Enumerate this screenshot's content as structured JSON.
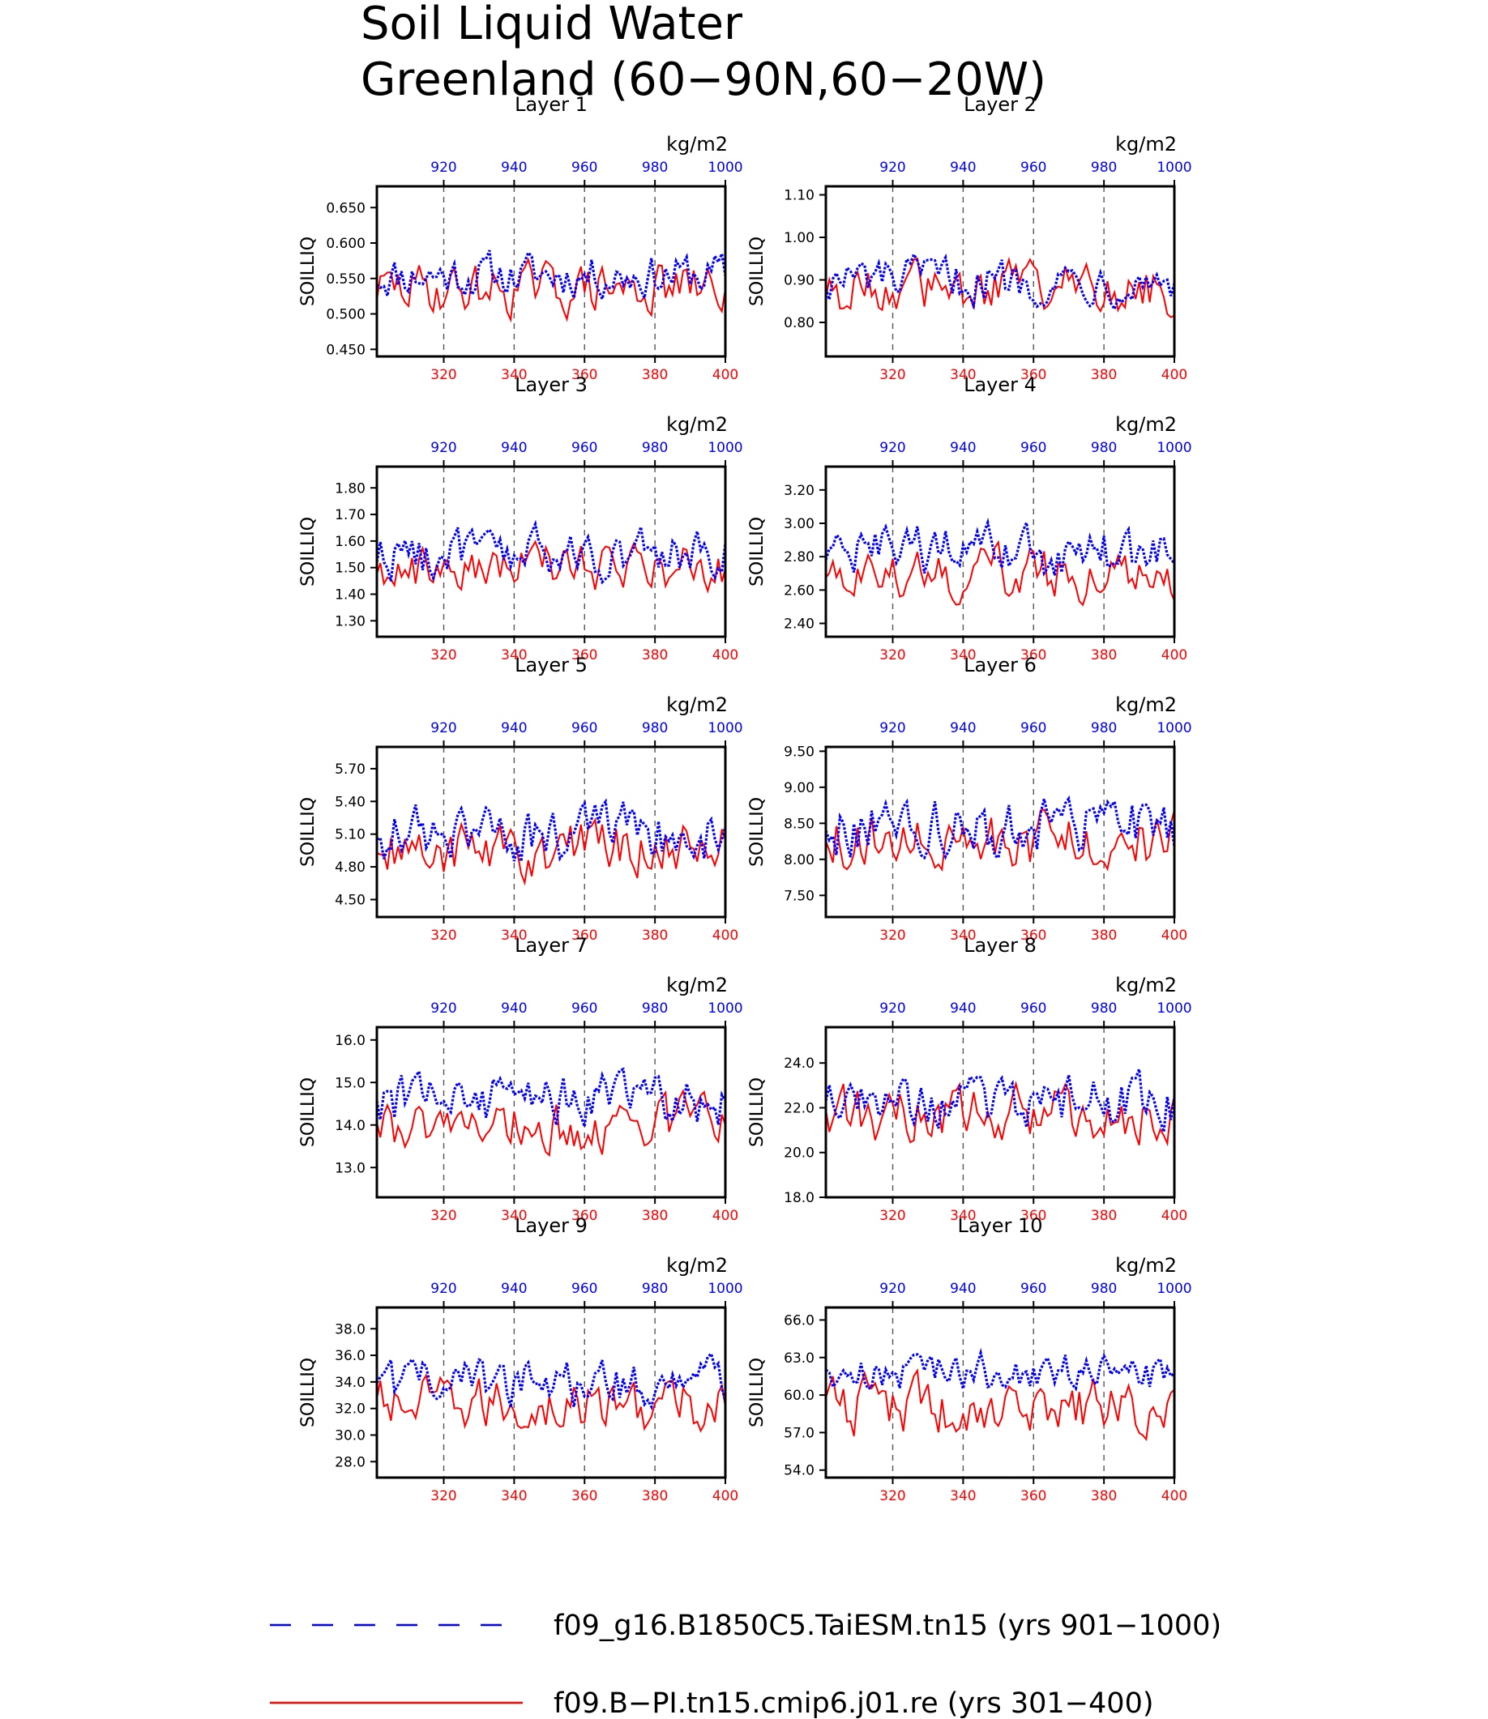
{
  "title_line1": "Soil Liquid Water",
  "title_line2": "Greenland (60−90N,60−20W)",
  "legend": {
    "placement": "bottom",
    "entries": [
      {
        "label": "f09_g16.B1850C5.TaiESM.tn15 (yrs 901−1000)",
        "color": "#0000ff",
        "style": "dashed"
      },
      {
        "label": "f09.B−PI.tn15.cmip6.j01.re (yrs 301−400)",
        "color": "#ff0000",
        "style": "solid"
      }
    ]
  },
  "chart_data": [
    {
      "type": "line",
      "title": "Layer 1",
      "ylabel": "SOILLIQ",
      "units": "kg/m2",
      "xlim_bottom": [
        301,
        400
      ],
      "xlim_top": [
        901,
        1000
      ],
      "ylim": [
        0.44,
        0.68
      ],
      "yticks": [
        "0.450",
        "0.500",
        "0.550",
        "0.600",
        "0.650"
      ],
      "ytick_values": [
        0.45,
        0.5,
        0.55,
        0.6,
        0.65
      ],
      "xticks_bottom": [
        "320",
        "340",
        "360",
        "380",
        "400"
      ],
      "xticks_top": [
        "920",
        "940",
        "960",
        "980",
        "1000"
      ],
      "blue_mean": 0.555,
      "blue_amp": 0.03,
      "red_mean": 0.535,
      "red_amp": 0.035
    },
    {
      "type": "line",
      "title": "Layer 2",
      "ylabel": "SOILLIQ",
      "units": "kg/m2",
      "xlim_bottom": [
        301,
        400
      ],
      "xlim_top": [
        901,
        1000
      ],
      "ylim": [
        0.72,
        1.12
      ],
      "yticks": [
        "0.80",
        "0.90",
        "1.00",
        "1.10"
      ],
      "ytick_values": [
        0.8,
        0.9,
        1.0,
        1.1
      ],
      "xticks_bottom": [
        "320",
        "340",
        "360",
        "380",
        "400"
      ],
      "xticks_top": [
        "920",
        "940",
        "960",
        "980",
        "1000"
      ],
      "blue_mean": 0.9,
      "blue_amp": 0.05,
      "red_mean": 0.88,
      "red_amp": 0.06
    },
    {
      "type": "line",
      "title": "Layer 3",
      "ylabel": "SOILLIQ",
      "units": "kg/m2",
      "xlim_bottom": [
        301,
        400
      ],
      "xlim_top": [
        901,
        1000
      ],
      "ylim": [
        1.24,
        1.88
      ],
      "yticks": [
        "1.30",
        "1.40",
        "1.50",
        "1.60",
        "1.70",
        "1.80"
      ],
      "ytick_values": [
        1.3,
        1.4,
        1.5,
        1.6,
        1.7,
        1.8
      ],
      "xticks_bottom": [
        "320",
        "340",
        "360",
        "380",
        "400"
      ],
      "xticks_top": [
        "920",
        "940",
        "960",
        "980",
        "1000"
      ],
      "blue_mean": 1.55,
      "blue_amp": 0.09,
      "red_mean": 1.5,
      "red_amp": 0.09
    },
    {
      "type": "line",
      "title": "Layer 4",
      "ylabel": "SOILLIQ",
      "units": "kg/m2",
      "xlim_bottom": [
        301,
        400
      ],
      "xlim_top": [
        901,
        1000
      ],
      "ylim": [
        2.32,
        3.34
      ],
      "yticks": [
        "2.40",
        "2.60",
        "2.80",
        "3.00",
        "3.20"
      ],
      "ytick_values": [
        2.4,
        2.6,
        2.8,
        3.0,
        3.2
      ],
      "xticks_bottom": [
        "320",
        "340",
        "360",
        "380",
        "400"
      ],
      "xticks_top": [
        "920",
        "940",
        "960",
        "980",
        "1000"
      ],
      "blue_mean": 2.82,
      "blue_amp": 0.15,
      "red_mean": 2.7,
      "red_amp": 0.15
    },
    {
      "type": "line",
      "title": "Layer 5",
      "ylabel": "SOILLIQ",
      "units": "kg/m2",
      "xlim_bottom": [
        301,
        400
      ],
      "xlim_top": [
        901,
        1000
      ],
      "ylim": [
        4.34,
        5.9
      ],
      "yticks": [
        "4.50",
        "4.80",
        "5.10",
        "5.40",
        "5.70"
      ],
      "ytick_values": [
        4.5,
        4.8,
        5.1,
        5.4,
        5.7
      ],
      "xticks_bottom": [
        "320",
        "340",
        "360",
        "380",
        "400"
      ],
      "xticks_top": [
        "920",
        "940",
        "960",
        "980",
        "1000"
      ],
      "blue_mean": 5.1,
      "blue_amp": 0.25,
      "red_mean": 4.95,
      "red_amp": 0.25
    },
    {
      "type": "line",
      "title": "Layer 6",
      "ylabel": "SOILLIQ",
      "units": "kg/m2",
      "xlim_bottom": [
        301,
        400
      ],
      "xlim_top": [
        901,
        1000
      ],
      "ylim": [
        7.2,
        9.56
      ],
      "yticks": [
        "7.50",
        "8.00",
        "8.50",
        "9.00",
        "9.50"
      ],
      "ytick_values": [
        7.5,
        8.0,
        8.5,
        9.0,
        9.5
      ],
      "xticks_bottom": [
        "320",
        "340",
        "360",
        "380",
        "400"
      ],
      "xticks_top": [
        "920",
        "940",
        "960",
        "980",
        "1000"
      ],
      "blue_mean": 8.45,
      "blue_amp": 0.4,
      "red_mean": 8.25,
      "red_amp": 0.4
    },
    {
      "type": "line",
      "title": "Layer 7",
      "ylabel": "SOILLIQ",
      "units": "kg/m2",
      "xlim_bottom": [
        301,
        400
      ],
      "xlim_top": [
        901,
        1000
      ],
      "ylim": [
        12.3,
        16.3
      ],
      "yticks": [
        "13.0",
        "14.0",
        "15.0",
        "16.0"
      ],
      "ytick_values": [
        13.0,
        14.0,
        15.0,
        16.0
      ],
      "xticks_bottom": [
        "320",
        "340",
        "360",
        "380",
        "400"
      ],
      "xticks_top": [
        "920",
        "940",
        "960",
        "980",
        "1000"
      ],
      "blue_mean": 14.6,
      "blue_amp": 0.6,
      "red_mean": 14.0,
      "red_amp": 0.6
    },
    {
      "type": "line",
      "title": "Layer 8",
      "ylabel": "SOILLIQ",
      "units": "kg/m2",
      "xlim_bottom": [
        301,
        400
      ],
      "xlim_top": [
        901,
        1000
      ],
      "ylim": [
        18.0,
        25.6
      ],
      "yticks": [
        "18.0",
        "20.0",
        "22.0",
        "24.0"
      ],
      "ytick_values": [
        18.0,
        20.0,
        22.0,
        24.0
      ],
      "xticks_bottom": [
        "320",
        "340",
        "360",
        "380",
        "400"
      ],
      "xticks_top": [
        "920",
        "940",
        "960",
        "980",
        "1000"
      ],
      "blue_mean": 22.3,
      "blue_amp": 1.1,
      "red_mean": 21.7,
      "red_amp": 1.2
    },
    {
      "type": "line",
      "title": "Layer 9",
      "ylabel": "SOILLIQ",
      "units": "kg/m2",
      "xlim_bottom": [
        301,
        400
      ],
      "xlim_top": [
        901,
        1000
      ],
      "ylim": [
        26.8,
        39.6
      ],
      "yticks": [
        "28.0",
        "30.0",
        "32.0",
        "34.0",
        "36.0",
        "38.0"
      ],
      "ytick_values": [
        28.0,
        30.0,
        32.0,
        34.0,
        36.0,
        38.0
      ],
      "xticks_bottom": [
        "320",
        "340",
        "360",
        "380",
        "400"
      ],
      "xticks_top": [
        "920",
        "940",
        "960",
        "980",
        "1000"
      ],
      "blue_mean": 33.8,
      "blue_amp": 1.8,
      "red_mean": 32.2,
      "red_amp": 2.0
    },
    {
      "type": "line",
      "title": "Layer 10",
      "ylabel": "SOILLIQ",
      "units": "kg/m2",
      "xlim_bottom": [
        301,
        400
      ],
      "xlim_top": [
        901,
        1000
      ],
      "ylim": [
        53.4,
        67.0
      ],
      "yticks": [
        "54.0",
        "57.0",
        "60.0",
        "63.0",
        "66.0"
      ],
      "ytick_values": [
        54.0,
        57.0,
        60.0,
        63.0,
        66.0
      ],
      "xticks_bottom": [
        "320",
        "340",
        "360",
        "380",
        "400"
      ],
      "xticks_top": [
        "920",
        "940",
        "960",
        "980",
        "1000"
      ],
      "blue_mean": 61.8,
      "blue_amp": 1.6,
      "red_mean": 59.0,
      "red_amp": 2.2
    }
  ]
}
